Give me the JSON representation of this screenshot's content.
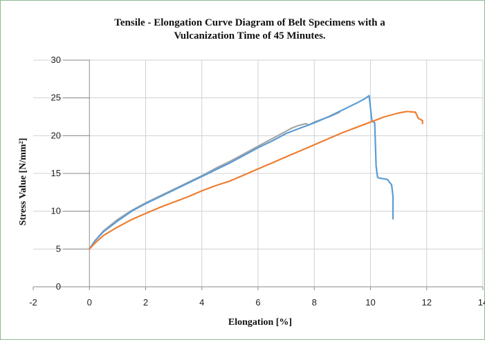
{
  "chart_data": {
    "type": "line",
    "title_line1": "Tensile - Elongation Curve Diagram of Belt Specimens with a",
    "title_line2": "Vulcanization Time of 45 Minutes.",
    "xlabel": "Elongation [%]",
    "ylabel": "Stress Value  [N/mm²]",
    "xlim": [
      -2,
      14
    ],
    "ylim": [
      0,
      30
    ],
    "x_ticks": [
      "-2",
      "0",
      "2",
      "4",
      "6",
      "8",
      "10",
      "12",
      "14"
    ],
    "y_ticks": [
      "0",
      "5",
      "10",
      "15",
      "20",
      "25",
      "30"
    ],
    "grid": true,
    "series": [
      {
        "color": "#a5a5a5",
        "x": [
          0,
          0.2,
          0.5,
          1,
          1.5,
          2,
          2.5,
          3,
          3.5,
          4,
          4.5,
          5,
          5.5,
          6,
          6.5,
          7,
          7.2,
          7.4,
          7.6,
          7.7,
          7.8,
          8.0,
          8.3,
          8.6,
          8.9
        ],
        "y": [
          5,
          6.1,
          7.4,
          8.9,
          10.1,
          11.1,
          12.0,
          12.9,
          13.8,
          14.7,
          15.7,
          16.6,
          17.6,
          18.6,
          19.6,
          20.6,
          21.0,
          21.3,
          21.5,
          21.6,
          21.4,
          21.8,
          22.2,
          22.6,
          23.1
        ]
      },
      {
        "color": "#5b9bd5",
        "x": [
          0,
          0.2,
          0.5,
          1,
          1.5,
          2,
          2.5,
          3,
          3.5,
          4,
          4.5,
          5,
          5.5,
          6,
          6.5,
          7,
          7.5,
          8,
          8.5,
          9,
          9.5,
          9.8,
          9.95,
          10.05,
          10.15,
          10.2,
          10.25,
          10.3,
          10.6,
          10.75,
          10.8,
          10.8
        ],
        "y": [
          5,
          6.1,
          7.3,
          8.7,
          10.0,
          11.0,
          11.9,
          12.8,
          13.7,
          14.6,
          15.5,
          16.4,
          17.4,
          18.4,
          19.3,
          20.3,
          21.0,
          21.7,
          22.5,
          23.4,
          24.3,
          24.9,
          25.3,
          22.0,
          21.7,
          16.0,
          14.5,
          14.4,
          14.2,
          13.5,
          12.0,
          9.0
        ]
      },
      {
        "color": "#ed7d31",
        "x": [
          0,
          0.2,
          0.5,
          1,
          1.5,
          2,
          2.5,
          3,
          3.5,
          4,
          4.5,
          5,
          5.5,
          6,
          6.5,
          7,
          7.5,
          8,
          8.5,
          9,
          9.5,
          10,
          10.5,
          11,
          11.3,
          11.6,
          11.7,
          11.85,
          11.85
        ],
        "y": [
          5,
          5.8,
          6.8,
          7.9,
          8.9,
          9.7,
          10.5,
          11.2,
          11.9,
          12.7,
          13.4,
          14.0,
          14.8,
          15.6,
          16.4,
          17.2,
          18.0,
          18.8,
          19.6,
          20.4,
          21.1,
          21.8,
          22.5,
          23.0,
          23.2,
          23.1,
          22.3,
          22.0,
          21.6
        ]
      }
    ]
  }
}
